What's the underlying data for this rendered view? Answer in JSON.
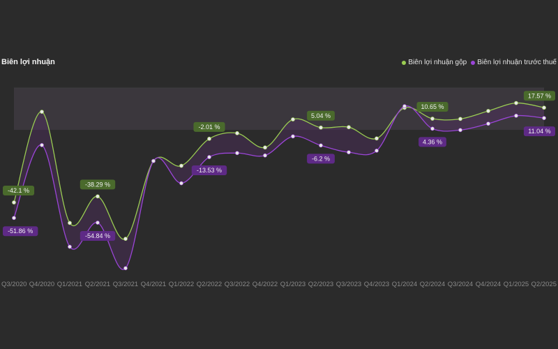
{
  "chart_data": {
    "type": "line",
    "title": "Biên lợi nhuận",
    "categories": [
      "Q3/2020",
      "Q4/2020",
      "Q1/2021",
      "Q2/2021",
      "Q3/2021",
      "Q4/2021",
      "Q1/2022",
      "Q2/2022",
      "Q3/2022",
      "Q4/2022",
      "Q1/2023",
      "Q2/2023",
      "Q3/2023",
      "Q4/2023",
      "Q1/2024",
      "Q2/2024",
      "Q3/2024",
      "Q4/2024",
      "Q1/2025",
      "Q2/2025"
    ],
    "series": [
      {
        "name": "Biên lợi nhuận gộp",
        "color": "#9acd52",
        "values": [
          -42.1,
          15,
          -55,
          -38.29,
          -65,
          -16,
          -19,
          -2.01,
          1.5,
          -7.5,
          10.2,
          5.04,
          5.3,
          -1.8,
          17.5,
          10.65,
          10.5,
          15.5,
          20.5,
          17.57
        ]
      },
      {
        "name": "Biên lợi nhuận trước thuế",
        "color": "#9b45d8",
        "values": [
          -51.86,
          -6,
          -70,
          -54.84,
          -83.5,
          -16,
          -30,
          -13.53,
          -11,
          -12.5,
          -0.5,
          -6.2,
          -10.5,
          -9.5,
          18.5,
          4.36,
          3.5,
          7.5,
          12.5,
          11.04
        ]
      }
    ],
    "data_labels": [
      {
        "series": 0,
        "index": 0,
        "text": "-42.1 %"
      },
      {
        "series": 0,
        "index": 3,
        "text": "-38.29 %"
      },
      {
        "series": 0,
        "index": 7,
        "text": "-2.01 %"
      },
      {
        "series": 0,
        "index": 11,
        "text": "5.04 %"
      },
      {
        "series": 0,
        "index": 15,
        "text": "10.65 %"
      },
      {
        "series": 0,
        "index": 19,
        "text": "17.57 %"
      },
      {
        "series": 1,
        "index": 0,
        "text": "-51.86 %"
      },
      {
        "series": 1,
        "index": 3,
        "text": "-54.84 %"
      },
      {
        "series": 1,
        "index": 7,
        "text": "-13.53 %"
      },
      {
        "series": 1,
        "index": 11,
        "text": "-6.2 %"
      },
      {
        "series": 1,
        "index": 15,
        "text": "4.36 %"
      },
      {
        "series": 1,
        "index": 19,
        "text": "11.04 %"
      }
    ],
    "ylim": [
      -90,
      30
    ],
    "legend_position": "top-right",
    "colors": {
      "background": "#2b2b2b",
      "tick_label": "#8a8a8a",
      "dot_fill": "#e8e8e8",
      "band": "#3d383f",
      "grid": "#3e3e3e",
      "label_green_bg": "#4a6a2c",
      "label_purple_bg": "#5e2a86"
    }
  }
}
